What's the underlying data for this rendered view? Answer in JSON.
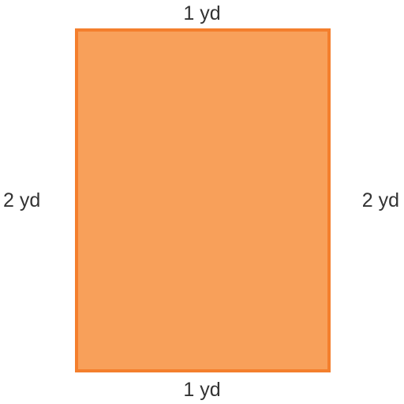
{
  "shape": {
    "type": "rectangle",
    "fill_color": "#f8a05a",
    "stroke_color": "#f47f2d"
  },
  "labels": {
    "top": "1 yd",
    "bottom": "1 yd",
    "left": "2 yd",
    "right": "2 yd"
  }
}
